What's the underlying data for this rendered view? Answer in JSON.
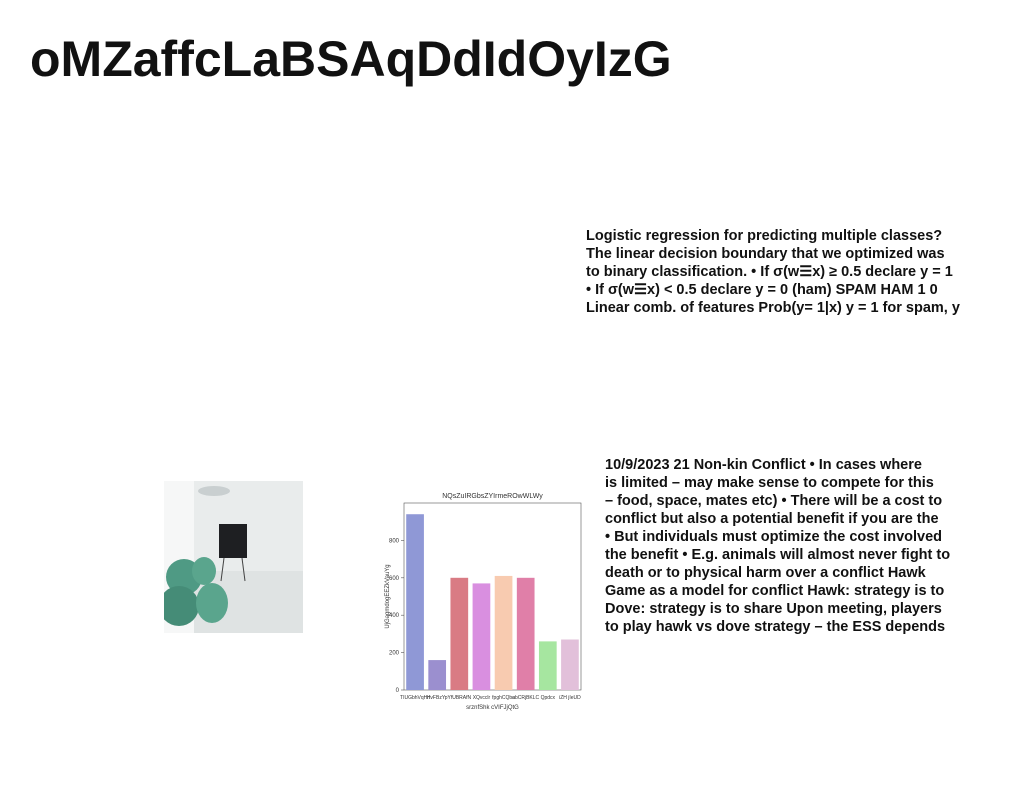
{
  "title": "oMZaffcLaBSAqDdIdOyIzG",
  "text_blocks": [
    {
      "lines": [
        "Logistic regression for predicting multiple classes?",
        "The linear decision boundary that we optimized was",
        "to binary classification. • If σ(w☰x) ≥ 0.5 declare y = 1",
        "• If σ(w☰x) < 0.5 declare y = 0 (ham) SPAM HAM 1 0",
        "Linear comb. of features Prob(y= 1|x) y = 1 for spam, y"
      ]
    },
    {
      "lines": [
        "10/9/2023 21 Non-kin Conflict • In cases where",
        "is limited – may make sense to compete for this",
        "– food, space, mates etc) • There will be a cost to",
        "conflict but also a potential benefit if you are the",
        "• But individuals must optimize the cost involved",
        "the benefit • E.g. animals will almost never fight to",
        "death or to physical harm over a conflict Hawk",
        "Game as a model for conflict Hawk: strategy is to",
        "Dove: strategy is to share Upon meeting, players",
        "to play hawk vs dove strategy – the ESS depends"
      ]
    }
  ],
  "chart_data": {
    "type": "bar",
    "title": "NQsZuIRGbsZYIrmeROwWLWy",
    "x_label": "srznfShk cVIFJjQtG",
    "y_label": "UjGagmdogEEZkVauYg",
    "categories": [
      "TIUGbhVqHrl",
      "HvFBzYp",
      "YfUBRAfN",
      "XQvcclr",
      "fpghCQba",
      "ebCRjBKLC",
      "Qpdcx",
      "iZH jIeUD"
    ],
    "values": [
      940,
      160,
      600,
      570,
      610,
      600,
      260,
      270
    ],
    "colors": [
      "#8f98d6",
      "#9b8fcf",
      "#d97b84",
      "#d98fe0",
      "#f8cbb0",
      "#e07fa8",
      "#a6e6a0",
      "#e2c0da"
    ],
    "ylim": [
      0,
      1000
    ],
    "yticks": [
      0,
      200,
      400,
      600,
      800
    ]
  }
}
